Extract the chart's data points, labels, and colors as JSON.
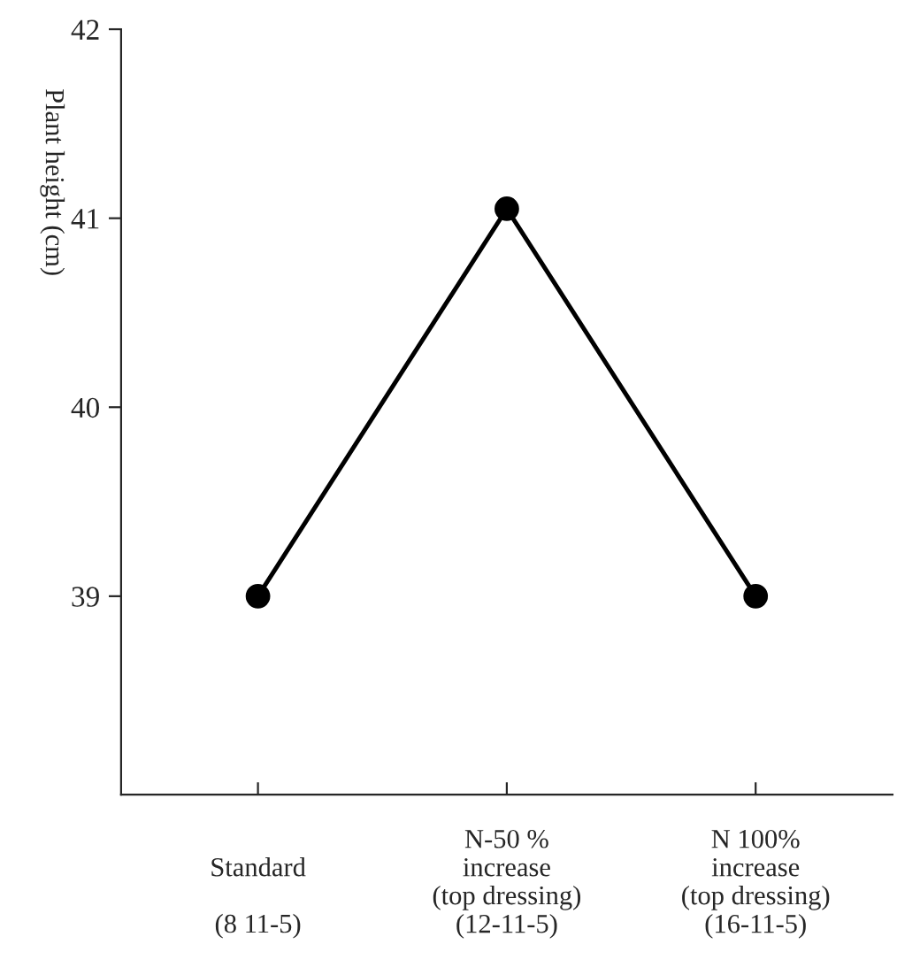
{
  "chart_data": {
    "type": "line",
    "ylabel": "Plant height (cm)",
    "categories": [
      "\nStandard\n\n(8 11-5)",
      "N-50 %\nincrease\n(top dressing)\n(12-11-5)",
      "N 100%\nincrease\n(top dressing)\n(16-11-5)"
    ],
    "series": [
      {
        "color": "#000000",
        "values": [
          39,
          41.05,
          39
        ]
      }
    ],
    "ylim": [
      37.95,
      42
    ],
    "yticks": [
      39,
      40,
      41,
      42
    ],
    "marker": "circle",
    "line_style": "solid",
    "grid": false,
    "legend": false
  }
}
